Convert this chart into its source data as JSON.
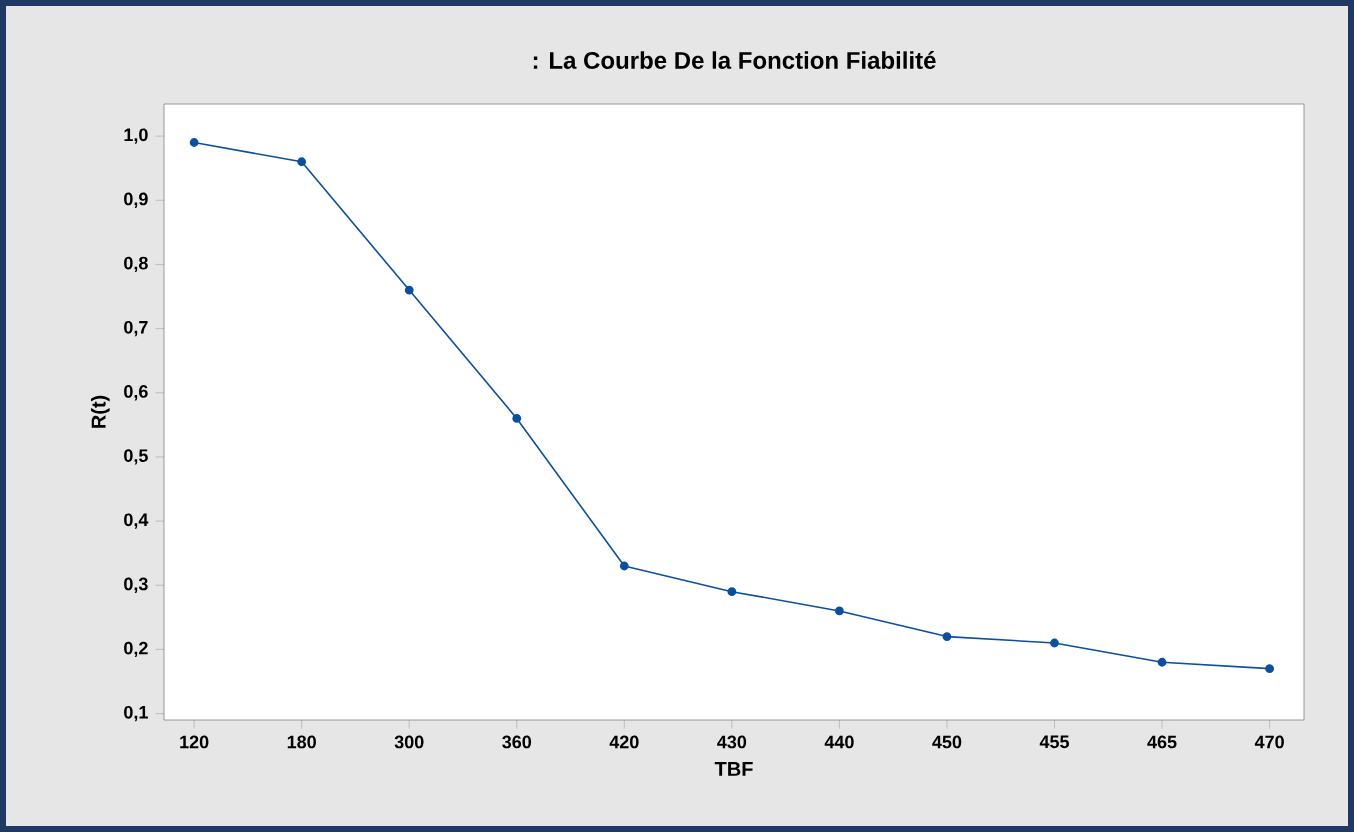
{
  "chart_data": {
    "type": "line",
    "title": ": La Courbe De la Fonction Fiabilité",
    "xlabel": "TBF",
    "ylabel": "R(t)",
    "categories": [
      "120",
      "180",
      "300",
      "360",
      "420",
      "430",
      "440",
      "450",
      "455",
      "465",
      "470"
    ],
    "series": [
      {
        "color": "#0b4f9e",
        "values": [
          0.99,
          0.96,
          0.76,
          0.56,
          0.33,
          0.29,
          0.26,
          0.22,
          0.21,
          0.18,
          0.17
        ]
      }
    ],
    "ylim": [
      0.09,
      1.05
    ],
    "yticks": [
      {
        "value": 0.1,
        "label": "0,1"
      },
      {
        "value": 0.2,
        "label": "0,2"
      },
      {
        "value": 0.3,
        "label": "0,3"
      },
      {
        "value": 0.4,
        "label": "0,4"
      },
      {
        "value": 0.5,
        "label": "0,5"
      },
      {
        "value": 0.6,
        "label": "0,6"
      },
      {
        "value": 0.7,
        "label": "0,7"
      },
      {
        "value": 0.8,
        "label": "0,8"
      },
      {
        "value": 0.9,
        "label": "0,9"
      },
      {
        "value": 1.0,
        "label": "1,0"
      }
    ],
    "marker": "circle",
    "line_style": "solid"
  }
}
